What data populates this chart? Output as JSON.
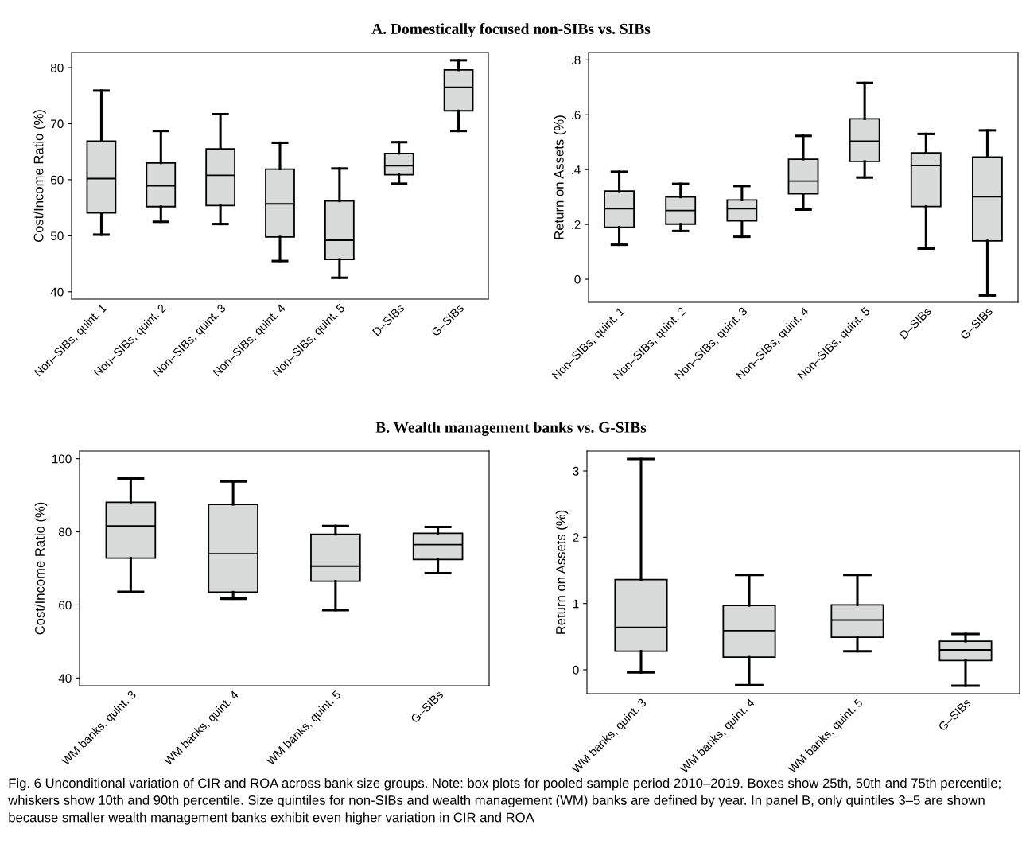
{
  "chart_data": [
    {
      "type": "box",
      "title": "A. Domestically focused non-SIBs vs. SIBs",
      "ylabel": "Cost/Income Ratio (%)",
      "color": "#d9dbda",
      "categories": [
        "Non–SIBs, quint. 1",
        "Non–SIBs, quint. 2",
        "Non–SIBs, quint. 3",
        "Non–SIBs, quint. 4",
        "Non–SIBs, quint. 5",
        "D–SIBs",
        "G–SIBs"
      ],
      "boxes": [
        {
          "low": 50.2,
          "q1": 54.1,
          "median": 60.2,
          "q3": 66.9,
          "high": 75.9
        },
        {
          "low": 52.5,
          "q1": 55.2,
          "median": 58.9,
          "q3": 63.0,
          "high": 68.7
        },
        {
          "low": 52.1,
          "q1": 55.4,
          "median": 60.8,
          "q3": 65.5,
          "high": 71.7
        },
        {
          "low": 45.5,
          "q1": 49.8,
          "median": 55.7,
          "q3": 61.9,
          "high": 66.6
        },
        {
          "low": 42.5,
          "q1": 45.8,
          "median": 49.2,
          "q3": 56.2,
          "high": 62.0
        },
        {
          "low": 59.3,
          "q1": 60.9,
          "median": 62.5,
          "q3": 64.7,
          "high": 66.7
        },
        {
          "low": 68.7,
          "q1": 72.3,
          "median": 76.5,
          "q3": 79.6,
          "high": 81.3
        }
      ],
      "ylim": [
        38.7,
        82.7
      ],
      "yticks": [
        40,
        50,
        60,
        70,
        80
      ],
      "grid": false,
      "legend": false
    },
    {
      "type": "box",
      "ylabel": "Return on Assets (%)",
      "color": "#d9dbda",
      "categories": [
        "Non–SIBs, quint. 1",
        "Non–SIBs, quint. 2",
        "Non–SIBs, quint. 3",
        "Non–SIBs, quint. 4",
        "Non–SIBs, quint. 5",
        "D–SIBs",
        "G–SIBs"
      ],
      "boxes": [
        {
          "low": 0.126,
          "q1": 0.19,
          "median": 0.257,
          "q3": 0.322,
          "high": 0.392
        },
        {
          "low": 0.176,
          "q1": 0.201,
          "median": 0.251,
          "q3": 0.3,
          "high": 0.348
        },
        {
          "low": 0.155,
          "q1": 0.213,
          "median": 0.257,
          "q3": 0.289,
          "high": 0.34
        },
        {
          "low": 0.254,
          "q1": 0.312,
          "median": 0.358,
          "q3": 0.438,
          "high": 0.523
        },
        {
          "low": 0.371,
          "q1": 0.43,
          "median": 0.504,
          "q3": 0.585,
          "high": 0.716
        },
        {
          "low": 0.112,
          "q1": 0.265,
          "median": 0.415,
          "q3": 0.461,
          "high": 0.53
        },
        {
          "low": -0.059,
          "q1": 0.14,
          "median": 0.301,
          "q3": 0.446,
          "high": 0.543
        }
      ],
      "ylim": [
        -0.084,
        0.827
      ],
      "yticks": [
        0,
        {
          "value": 0.2,
          "label": ".2"
        },
        {
          "value": 0.4,
          "label": ".4"
        },
        {
          "value": 0.6,
          "label": ".6"
        },
        {
          "value": 0.8,
          "label": ".8"
        }
      ],
      "grid": false,
      "legend": false
    },
    {
      "type": "box",
      "title": "B. Wealth management banks vs. G-SIBs",
      "ylabel": "Cost/Income Ratio (%)",
      "color": "#d9dbda",
      "categories": [
        "WM banks, quint. 3",
        "WM banks, quint. 4",
        "WM banks, quint. 5",
        "G–SIBs"
      ],
      "boxes": [
        {
          "low": 63.6,
          "q1": 72.8,
          "median": 81.6,
          "q3": 88.1,
          "high": 94.6
        },
        {
          "low": 61.7,
          "q1": 63.5,
          "median": 74.0,
          "q3": 87.5,
          "high": 93.8
        },
        {
          "low": 58.6,
          "q1": 66.5,
          "median": 70.6,
          "q3": 79.3,
          "high": 81.6
        },
        {
          "low": 68.7,
          "q1": 72.4,
          "median": 76.5,
          "q3": 79.6,
          "high": 81.3
        }
      ],
      "ylim": [
        37.9,
        102.1
      ],
      "yticks": [
        40,
        60,
        80,
        100
      ],
      "grid": false,
      "legend": false
    },
    {
      "type": "box",
      "ylabel": "Return on Assets (%)",
      "color": "#d9dbda",
      "categories": [
        "WM banks, quint. 3",
        "WM banks, quint. 4",
        "WM banks, quint. 5",
        "G–SIBs"
      ],
      "boxes": [
        {
          "low": -0.04,
          "q1": 0.28,
          "median": 0.64,
          "q3": 1.36,
          "high": 3.18
        },
        {
          "low": -0.23,
          "q1": 0.19,
          "median": 0.59,
          "q3": 0.97,
          "high": 1.43
        },
        {
          "low": 0.28,
          "q1": 0.49,
          "median": 0.75,
          "q3": 0.98,
          "high": 1.43
        },
        {
          "low": -0.24,
          "q1": 0.14,
          "median": 0.3,
          "q3": 0.43,
          "high": 0.54
        }
      ],
      "ylim": [
        -0.36,
        3.3
      ],
      "yticks": [
        0,
        1,
        2,
        3
      ],
      "grid": false,
      "legend": false,
      "annotations": [
        "Fig. 6 Unconditional variation of CIR and ROA across bank size groups. Note: box plots for pooled sample period 2010–2019. Boxes show 25th, 50th and 75th percentile; whiskers show 10th and 90th percentile. Size quintiles for non-SIBs and wealth management (WM) banks are defined by year. In panel B, only quintiles 3–5 are shown because smaller wealth management banks exhibit even higher variation in CIR and ROA"
      ]
    }
  ]
}
